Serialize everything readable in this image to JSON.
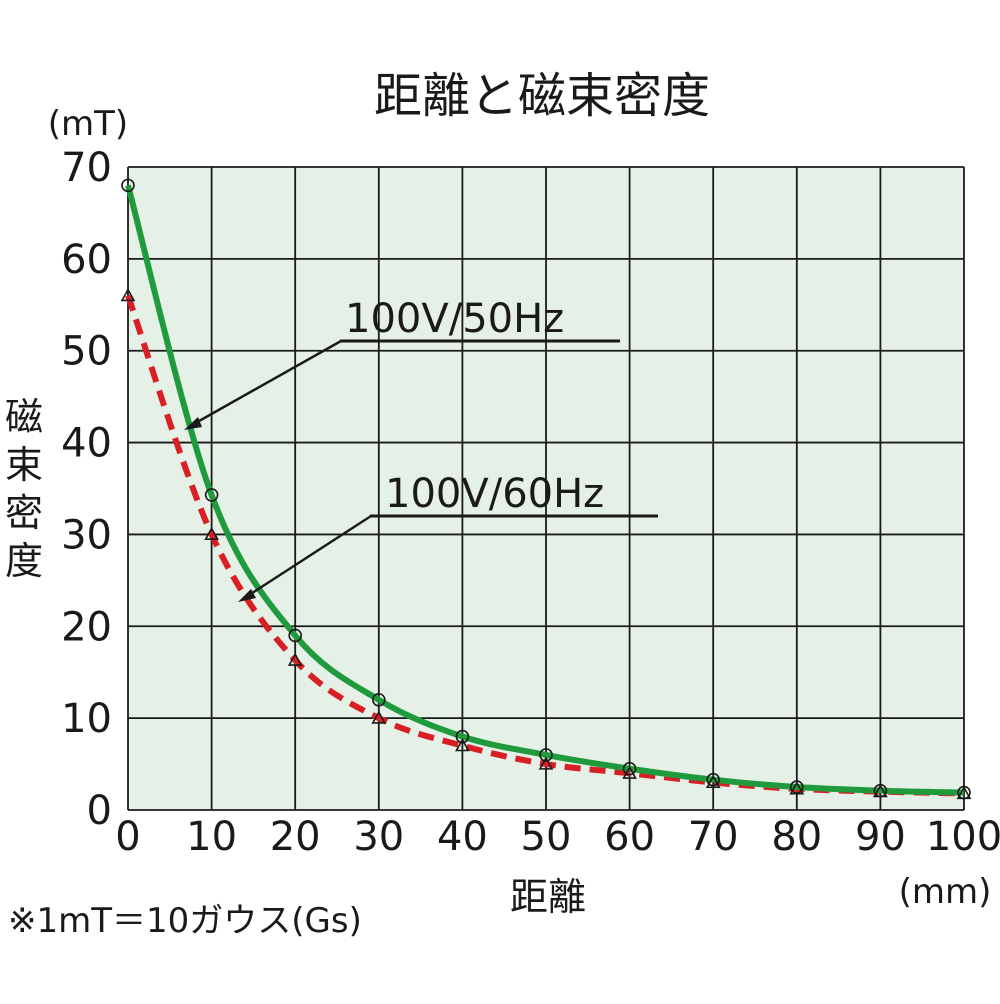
{
  "chart_data": {
    "type": "line",
    "title": "距離と磁束密度",
    "ylabel": "磁束密度",
    "yunit": "(mT)",
    "xlabel": "距離",
    "xunit": "(mm)",
    "note": "※1mT＝10ガウス(Gs)",
    "xlim": [
      0,
      100
    ],
    "ylim": [
      0,
      70
    ],
    "xticks": [
      0,
      10,
      20,
      30,
      40,
      50,
      60,
      70,
      80,
      90,
      100
    ],
    "yticks": [
      0,
      10,
      20,
      30,
      40,
      50,
      60,
      70
    ],
    "grid": true,
    "x": [
      0,
      10,
      20,
      30,
      40,
      50,
      60,
      70,
      80,
      90,
      100
    ],
    "series": [
      {
        "name": "100V/50Hz",
        "color": "#1f9a3c",
        "style": "solid",
        "marker": "circle",
        "values": [
          68,
          34.3,
          19,
          12,
          8,
          6,
          4.5,
          3.3,
          2.5,
          2.1,
          1.9
        ]
      },
      {
        "name": "100V/60Hz",
        "color": "#d91f26",
        "style": "dashed",
        "marker": "triangle",
        "values": [
          56,
          30,
          16.3,
          10,
          7,
          5,
          4,
          3,
          2.3,
          2,
          1.8
        ]
      }
    ]
  },
  "colors": {
    "plot_background": "#e5f1e6",
    "grid": "#1a1a1a"
  }
}
